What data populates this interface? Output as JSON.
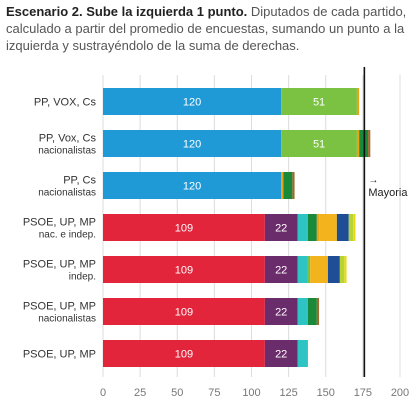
{
  "chart_data": {
    "type": "bar",
    "orientation": "horizontal",
    "stacked": true,
    "title": "Escenario 2. Sube la izquierda 1 punto.",
    "subtitle": "Diputados de cada partido, calculado a partir del promedio de encuestas, sumando un punto a la izquierda y sustrayéndolo de la suma de derechas.",
    "xlim": [
      0,
      200
    ],
    "xticks": [
      0,
      25,
      50,
      75,
      100,
      125,
      150,
      175,
      200
    ],
    "grid": true,
    "reference_line": {
      "value": 176,
      "label_arrow": "→",
      "label": "Mayoria"
    },
    "rows": [
      {
        "label": [
          "PP, VOX, Cs"
        ],
        "segments": [
          {
            "value": 120,
            "color": "#1f9ad6",
            "label": "120"
          },
          {
            "value": 51,
            "color": "#7cc242",
            "label": "51"
          },
          {
            "value": 1.5,
            "color": "#e8a317"
          }
        ]
      },
      {
        "label": [
          "PP, Vox, Cs",
          "nacionalistas"
        ],
        "segments": [
          {
            "value": 120,
            "color": "#1f9ad6",
            "label": "120"
          },
          {
            "value": 51,
            "color": "#7cc242",
            "label": "51"
          },
          {
            "value": 1.5,
            "color": "#e8a317"
          },
          {
            "value": 6,
            "color": "#1a8a3a"
          },
          {
            "value": 1.5,
            "color": "#9c6b2e"
          }
        ]
      },
      {
        "label": [
          "PP, Cs",
          "nacionalistas"
        ],
        "segments": [
          {
            "value": 120,
            "color": "#1f9ad6",
            "label": "120"
          },
          {
            "value": 1.5,
            "color": "#e8a317"
          },
          {
            "value": 6,
            "color": "#1a8a3a"
          },
          {
            "value": 1.5,
            "color": "#9c6b2e"
          }
        ]
      },
      {
        "label": [
          "PSOE, UP, MP",
          "nac. e indep."
        ],
        "segments": [
          {
            "value": 109,
            "color": "#e3253c",
            "label": "109"
          },
          {
            "value": 22,
            "color": "#6b2c6b",
            "label": "22"
          },
          {
            "value": 7,
            "color": "#2ec4c4"
          },
          {
            "value": 6,
            "color": "#1a8a3a"
          },
          {
            "value": 1.5,
            "color": "#e8a317"
          },
          {
            "value": 12,
            "color": "#f2b31c"
          },
          {
            "value": 8,
            "color": "#1f4e96"
          },
          {
            "value": 3,
            "color": "#b8d433"
          },
          {
            "value": 1.5,
            "color": "#e8d817"
          }
        ]
      },
      {
        "label": [
          "PSOE, UP, MP",
          "indep."
        ],
        "segments": [
          {
            "value": 109,
            "color": "#e3253c",
            "label": "109"
          },
          {
            "value": 22,
            "color": "#6b2c6b",
            "label": "22"
          },
          {
            "value": 7,
            "color": "#2ec4c4"
          },
          {
            "value": 1.5,
            "color": "#7cc242"
          },
          {
            "value": 12,
            "color": "#f2b31c"
          },
          {
            "value": 8,
            "color": "#1f4e96"
          },
          {
            "value": 3,
            "color": "#b8d433"
          },
          {
            "value": 1.5,
            "color": "#e8d817"
          }
        ]
      },
      {
        "label": [
          "PSOE, UP, MP",
          "nacionalistas"
        ],
        "segments": [
          {
            "value": 109,
            "color": "#e3253c",
            "label": "109"
          },
          {
            "value": 22,
            "color": "#6b2c6b",
            "label": "22"
          },
          {
            "value": 7,
            "color": "#2ec4c4"
          },
          {
            "value": 6,
            "color": "#1a8a3a"
          },
          {
            "value": 1.5,
            "color": "#9c6b2e"
          }
        ]
      },
      {
        "label": [
          "PSOE, UP, MP"
        ],
        "segments": [
          {
            "value": 109,
            "color": "#e3253c",
            "label": "109"
          },
          {
            "value": 22,
            "color": "#6b2c6b",
            "label": "22"
          },
          {
            "value": 7,
            "color": "#2ec4c4"
          }
        ]
      }
    ]
  }
}
